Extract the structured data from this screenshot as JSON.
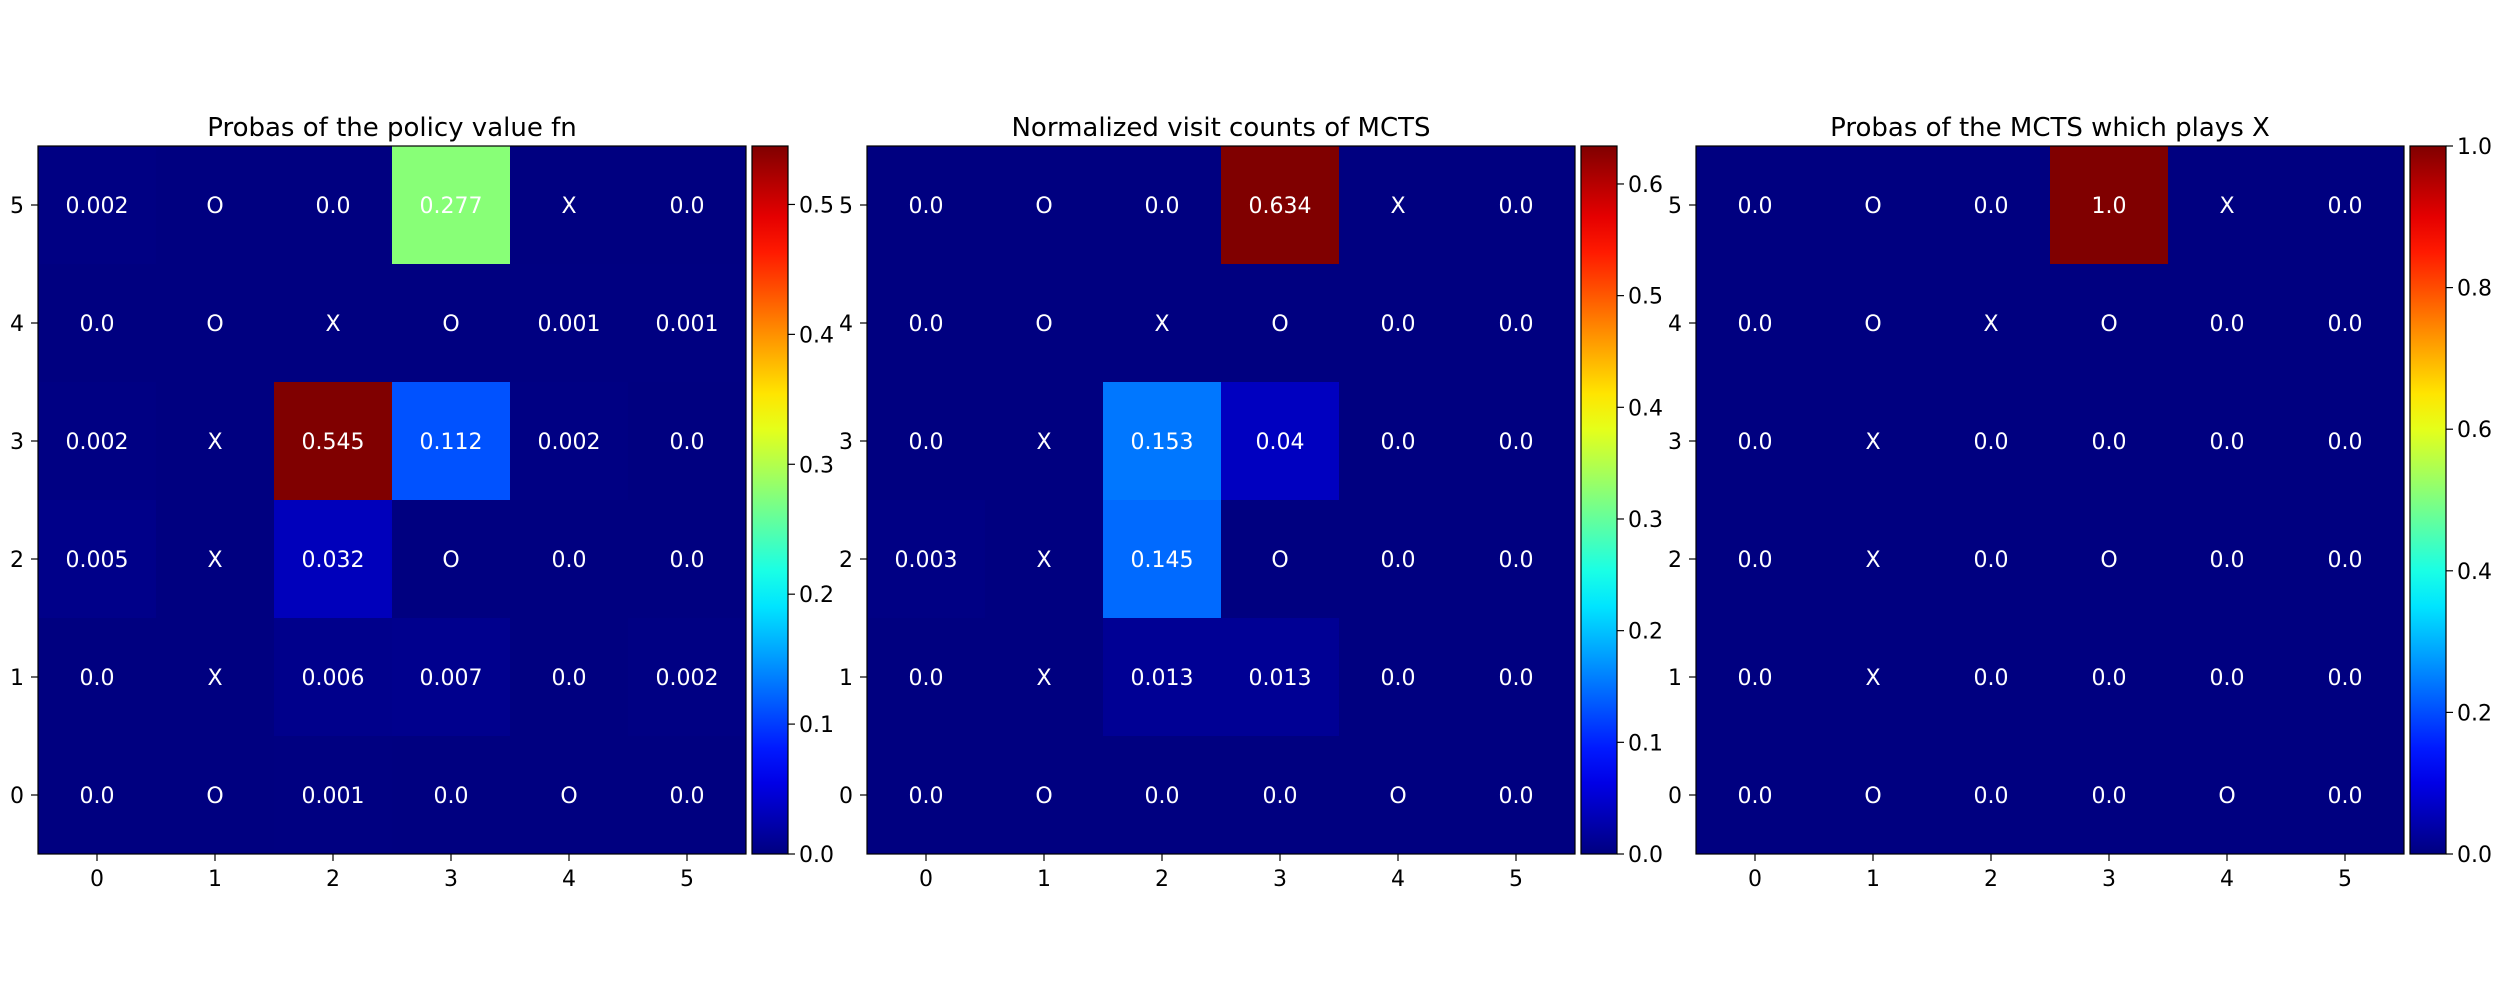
{
  "chart_data": [
    {
      "type": "heatmap",
      "title": "Probas of the policy value fn",
      "x": [
        0,
        1,
        2,
        3,
        4,
        5
      ],
      "y": [
        0,
        1,
        2,
        3,
        4,
        5
      ],
      "colormap": "jet",
      "vmin": 0.0,
      "vmax": 0.545,
      "colorbar_ticks": [
        "0.0",
        "0.1",
        "0.2",
        "0.3",
        "0.4",
        "0.5"
      ],
      "colorbar_values": [
        0.0,
        0.1,
        0.2,
        0.3,
        0.4,
        0.5
      ],
      "rows": [
        {
          "y": 5,
          "values": [
            0.002,
            0.0,
            0.0,
            0.277,
            0.0,
            0.0
          ],
          "labels": [
            "0.002",
            "O",
            "0.0",
            "0.277",
            "X",
            "0.0"
          ]
        },
        {
          "y": 4,
          "values": [
            0.0,
            0.0,
            0.0,
            0.0,
            0.001,
            0.001
          ],
          "labels": [
            "0.0",
            "O",
            "X",
            "O",
            "0.001",
            "0.001"
          ]
        },
        {
          "y": 3,
          "values": [
            0.002,
            0.0,
            0.545,
            0.112,
            0.002,
            0.0
          ],
          "labels": [
            "0.002",
            "X",
            "0.545",
            "0.112",
            "0.002",
            "0.0"
          ]
        },
        {
          "y": 2,
          "values": [
            0.005,
            0.0,
            0.032,
            0.0,
            0.0,
            0.0
          ],
          "labels": [
            "0.005",
            "X",
            "0.032",
            "O",
            "0.0",
            "0.0"
          ]
        },
        {
          "y": 1,
          "values": [
            0.0,
            0.0,
            0.006,
            0.007,
            0.0,
            0.002
          ],
          "labels": [
            "0.0",
            "X",
            "0.006",
            "0.007",
            "0.0",
            "0.002"
          ]
        },
        {
          "y": 0,
          "values": [
            0.0,
            0.0,
            0.001,
            0.0,
            0.0,
            0.0
          ],
          "labels": [
            "0.0",
            "O",
            "0.001",
            "0.0",
            "O",
            "0.0"
          ]
        }
      ]
    },
    {
      "type": "heatmap",
      "title": "Normalized visit counts of MCTS",
      "x": [
        0,
        1,
        2,
        3,
        4,
        5
      ],
      "y": [
        0,
        1,
        2,
        3,
        4,
        5
      ],
      "colormap": "jet",
      "vmin": 0.0,
      "vmax": 0.634,
      "colorbar_ticks": [
        "0.0",
        "0.1",
        "0.2",
        "0.3",
        "0.4",
        "0.5",
        "0.6"
      ],
      "colorbar_values": [
        0.0,
        0.1,
        0.2,
        0.3,
        0.4,
        0.5,
        0.6
      ],
      "rows": [
        {
          "y": 5,
          "values": [
            0.0,
            0.0,
            0.0,
            0.634,
            0.0,
            0.0
          ],
          "labels": [
            "0.0",
            "O",
            "0.0",
            "0.634",
            "X",
            "0.0"
          ]
        },
        {
          "y": 4,
          "values": [
            0.0,
            0.0,
            0.0,
            0.0,
            0.0,
            0.0
          ],
          "labels": [
            "0.0",
            "O",
            "X",
            "O",
            "0.0",
            "0.0"
          ]
        },
        {
          "y": 3,
          "values": [
            0.0,
            0.0,
            0.153,
            0.04,
            0.0,
            0.0
          ],
          "labels": [
            "0.0",
            "X",
            "0.153",
            "0.04",
            "0.0",
            "0.0"
          ]
        },
        {
          "y": 2,
          "values": [
            0.003,
            0.0,
            0.145,
            0.0,
            0.0,
            0.0
          ],
          "labels": [
            "0.003",
            "X",
            "0.145",
            "O",
            "0.0",
            "0.0"
          ]
        },
        {
          "y": 1,
          "values": [
            0.0,
            0.0,
            0.013,
            0.013,
            0.0,
            0.0
          ],
          "labels": [
            "0.0",
            "X",
            "0.013",
            "0.013",
            "0.0",
            "0.0"
          ]
        },
        {
          "y": 0,
          "values": [
            0.0,
            0.0,
            0.0,
            0.0,
            0.0,
            0.0
          ],
          "labels": [
            "0.0",
            "O",
            "0.0",
            "0.0",
            "O",
            "0.0"
          ]
        }
      ]
    },
    {
      "type": "heatmap",
      "title": "Probas of the MCTS which plays X",
      "x": [
        0,
        1,
        2,
        3,
        4,
        5
      ],
      "y": [
        0,
        1,
        2,
        3,
        4,
        5
      ],
      "colormap": "jet",
      "vmin": 0.0,
      "vmax": 1.0,
      "colorbar_ticks": [
        "0.0",
        "0.2",
        "0.4",
        "0.6",
        "0.8",
        "1.0"
      ],
      "colorbar_values": [
        0.0,
        0.2,
        0.4,
        0.6,
        0.8,
        1.0
      ],
      "rows": [
        {
          "y": 5,
          "values": [
            0.0,
            0.0,
            0.0,
            1.0,
            0.0,
            0.0
          ],
          "labels": [
            "0.0",
            "O",
            "0.0",
            "1.0",
            "X",
            "0.0"
          ]
        },
        {
          "y": 4,
          "values": [
            0.0,
            0.0,
            0.0,
            0.0,
            0.0,
            0.0
          ],
          "labels": [
            "0.0",
            "O",
            "X",
            "O",
            "0.0",
            "0.0"
          ]
        },
        {
          "y": 3,
          "values": [
            0.0,
            0.0,
            0.0,
            0.0,
            0.0,
            0.0
          ],
          "labels": [
            "0.0",
            "X",
            "0.0",
            "0.0",
            "0.0",
            "0.0"
          ]
        },
        {
          "y": 2,
          "values": [
            0.0,
            0.0,
            0.0,
            0.0,
            0.0,
            0.0
          ],
          "labels": [
            "0.0",
            "X",
            "0.0",
            "O",
            "0.0",
            "0.0"
          ]
        },
        {
          "y": 1,
          "values": [
            0.0,
            0.0,
            0.0,
            0.0,
            0.0,
            0.0
          ],
          "labels": [
            "0.0",
            "X",
            "0.0",
            "0.0",
            "0.0",
            "0.0"
          ]
        },
        {
          "y": 0,
          "values": [
            0.0,
            0.0,
            0.0,
            0.0,
            0.0,
            0.0
          ],
          "labels": [
            "0.0",
            "O",
            "0.0",
            "0.0",
            "O",
            "0.0"
          ]
        }
      ]
    }
  ]
}
